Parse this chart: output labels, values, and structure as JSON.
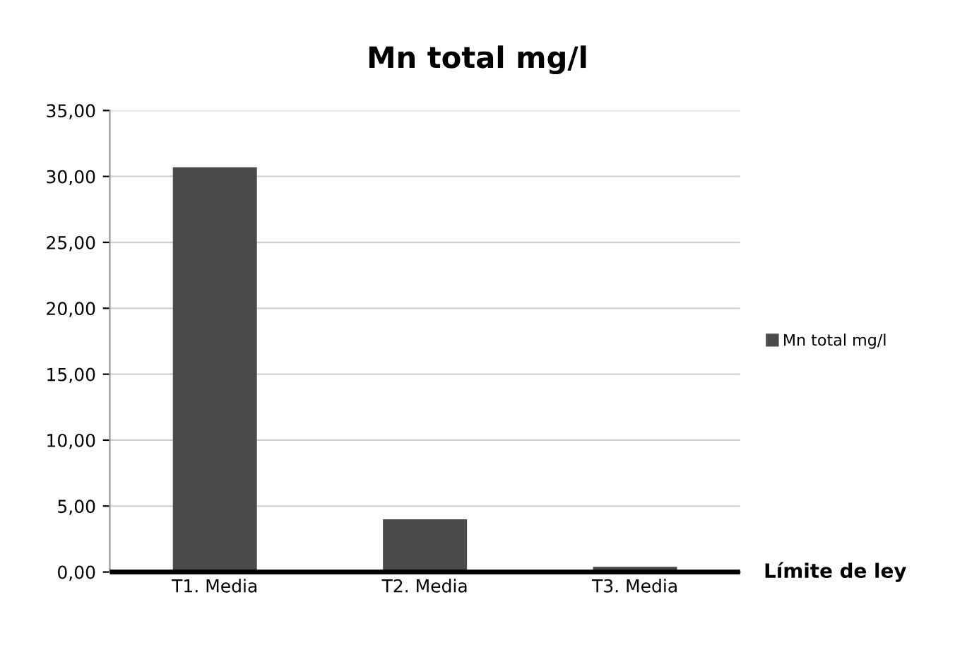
{
  "chart_data": {
    "type": "bar",
    "title": "Mn total mg/l",
    "categories": [
      "T1. Media",
      "T2. Media",
      "T3. Media"
    ],
    "series": [
      {
        "name": "Mn total mg/l",
        "color": "#4a4a4a",
        "values": [
          30.7,
          4.0,
          0.4
        ]
      }
    ],
    "ylim": [
      0,
      35
    ],
    "yticks": [
      {
        "value": 0,
        "label": "0,00"
      },
      {
        "value": 5,
        "label": "5,00"
      },
      {
        "value": 10,
        "label": "10,00"
      },
      {
        "value": 15,
        "label": "15,00"
      },
      {
        "value": 20,
        "label": "20,00"
      },
      {
        "value": 25,
        "label": "25,00"
      },
      {
        "value": 30,
        "label": "30,00"
      },
      {
        "value": 35,
        "label": "35,00"
      }
    ],
    "ref_lines": [
      {
        "axis": "y",
        "value": 0,
        "label": "Límite de ley",
        "color": "#000000"
      }
    ],
    "grid": "y",
    "legend": "right"
  }
}
